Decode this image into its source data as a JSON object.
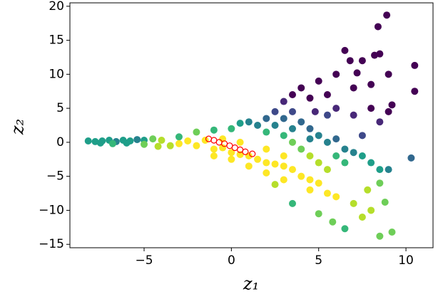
{
  "chart_data": {
    "type": "scatter",
    "xlabel": "z₁",
    "ylabel": "z₂",
    "xlim": [
      -9.25,
      11.55
    ],
    "ylim": [
      -15.5,
      20.5
    ],
    "xticks": [
      {
        "value": -5,
        "label": "−5"
      },
      0,
      5,
      10
    ],
    "yticks": [
      {
        "value": -15,
        "label": "−15"
      },
      {
        "value": -10,
        "label": "−10"
      },
      {
        "value": -5,
        "label": "−5"
      },
      0,
      5,
      10,
      15,
      20
    ],
    "series": [
      {
        "marker": "filled",
        "x": [
          -8.2,
          -7.8,
          -7.4,
          -7,
          -6.6,
          -6.2,
          -5.8,
          -5.4,
          -5,
          -7.5,
          -6.8,
          -6,
          -5,
          -4.5,
          -4,
          -3.5,
          -4.2,
          -3,
          -3,
          -2.5,
          -2,
          -1.5,
          -1,
          -0.5,
          0,
          0.5,
          1,
          1.5,
          2,
          2.5,
          3,
          3.5,
          4,
          4.5,
          5,
          1,
          2,
          3,
          0,
          -1,
          2,
          3,
          0.5,
          -0.5,
          -2,
          -1,
          0,
          0.5,
          1,
          1.5,
          2,
          2.5,
          3,
          3.5,
          4,
          4.5,
          5,
          5.5,
          6,
          6.5,
          7,
          7.5,
          8,
          2,
          2.5,
          3,
          3.5,
          4,
          4.5,
          5,
          5.5,
          6,
          6.5,
          3.5,
          4.5,
          3,
          3.5,
          4,
          4.5,
          5,
          5.5,
          6,
          6.5,
          7,
          7.5,
          8,
          8.5,
          8.4,
          8.9,
          9,
          10.5,
          10.5,
          9.2,
          8,
          7,
          6,
          5.5,
          4.8,
          7.5,
          8.5,
          9,
          6.8,
          8.2,
          7.2,
          10.3,
          8.5,
          9,
          8.8,
          8.5,
          9.2,
          7,
          6.5,
          5.8,
          5,
          3.5,
          7.5,
          8.5,
          7.8,
          6,
          5.5,
          4.5,
          2.5,
          8
        ],
        "y": [
          0.2,
          0.1,
          0.2,
          0.3,
          0.1,
          0.3,
          0.2,
          0.4,
          0.3,
          -0.1,
          -0.2,
          -0.1,
          -0.3,
          0.5,
          0.3,
          -0.5,
          -0.6,
          0.8,
          -0.2,
          0.2,
          -0.5,
          0.3,
          -1,
          -0.8,
          -1.5,
          -1.8,
          -2,
          -2.5,
          -3,
          -3.2,
          -3.5,
          -4,
          -5,
          -5.5,
          -6,
          -3.5,
          -4.5,
          -5.5,
          -2.5,
          -2,
          -1,
          -2,
          0,
          0.5,
          1.5,
          1.8,
          2,
          2.8,
          3,
          2.5,
          1.5,
          2.5,
          1,
          0,
          -1,
          -2,
          -3,
          -4,
          -2,
          -3,
          -1.5,
          -2,
          -3,
          3.5,
          4.5,
          3.5,
          4.5,
          3,
          2,
          1,
          0,
          0.5,
          -1,
          2,
          0.5,
          6,
          7,
          8,
          6.5,
          9,
          7,
          10,
          13.5,
          8,
          12,
          8.5,
          13,
          17,
          18.7,
          10,
          11.3,
          7.5,
          5.5,
          5,
          4,
          5,
          4,
          4.5,
          1,
          3,
          4.5,
          12,
          12.8,
          10.2,
          -2.3,
          -4,
          -4,
          -8.8,
          -13.8,
          -13.2,
          -9,
          -12.7,
          -11.7,
          -10.5,
          -9,
          -11,
          -6,
          -7,
          -8,
          -7.5,
          -7,
          -6.2,
          -10
        ],
        "colors": [
          "#1f9e89",
          "#1f9e89",
          "#1f9e89",
          "#1f9e89",
          "#26828e",
          "#1f9e89",
          "#1f9e89",
          "#26828e",
          "#1f9e89",
          "#1f9e89",
          "#35b779",
          "#1f9e89",
          "#6ece58",
          "#6ece58",
          "#b5de2b",
          "#b5de2b",
          "#b5de2b",
          "#35b779",
          "#fde725",
          "#fde725",
          "#fde725",
          "#fde725",
          "#fde725",
          "#fde725",
          "#fde725",
          "#fde725",
          "#fde725",
          "#fde725",
          "#fde725",
          "#fde725",
          "#fde725",
          "#fde725",
          "#fde725",
          "#fde725",
          "#fde725",
          "#fde725",
          "#fde725",
          "#fde725",
          "#fde725",
          "#fde725",
          "#fde725",
          "#fde725",
          "#fde725",
          "#fde725",
          "#6ece58",
          "#35b779",
          "#35b779",
          "#1f9e89",
          "#26828e",
          "#26828e",
          "#35b779",
          "#26828e",
          "#35b779",
          "#6ece58",
          "#6ece58",
          "#b5de2b",
          "#b5de2b",
          "#b5de2b",
          "#35b779",
          "#35b779",
          "#26828e",
          "#1f9e89",
          "#1f9e89",
          "#31688e",
          "#3e4989",
          "#31688e",
          "#3e4989",
          "#31688e",
          "#31688e",
          "#26828e",
          "#26828e",
          "#31688e",
          "#26828e",
          "#26828e",
          "#26828e",
          "#482878",
          "#440154",
          "#440154",
          "#440154",
          "#440154",
          "#440154",
          "#440154",
          "#440154",
          "#440154",
          "#440154",
          "#440154",
          "#440154",
          "#440154",
          "#440154",
          "#440154",
          "#440154",
          "#440154",
          "#440154",
          "#440154",
          "#482878",
          "#482878",
          "#3e4989",
          "#482878",
          "#3e4989",
          "#482878",
          "#440154",
          "#440154",
          "#440154",
          "#440154",
          "#31688e",
          "#1f9e89",
          "#26828e",
          "#6ece58",
          "#6ece58",
          "#6ece58",
          "#b5de2b",
          "#35b779",
          "#6ece58",
          "#6ece58",
          "#35b779",
          "#b5de2b",
          "#6ece58",
          "#b5de2b",
          "#fde725",
          "#fde725",
          "#fde725",
          "#b5de2b",
          "#b5de2b"
        ]
      },
      {
        "marker": "open",
        "color": "#ff0000",
        "x": [
          -1.3,
          -1.0,
          -0.7,
          -0.4,
          -0.1,
          0.2,
          0.5,
          0.8,
          1.2
        ],
        "y": [
          0.5,
          0.3,
          0.0,
          -0.2,
          -0.5,
          -0.8,
          -1.1,
          -1.4,
          -1.7
        ]
      }
    ]
  }
}
